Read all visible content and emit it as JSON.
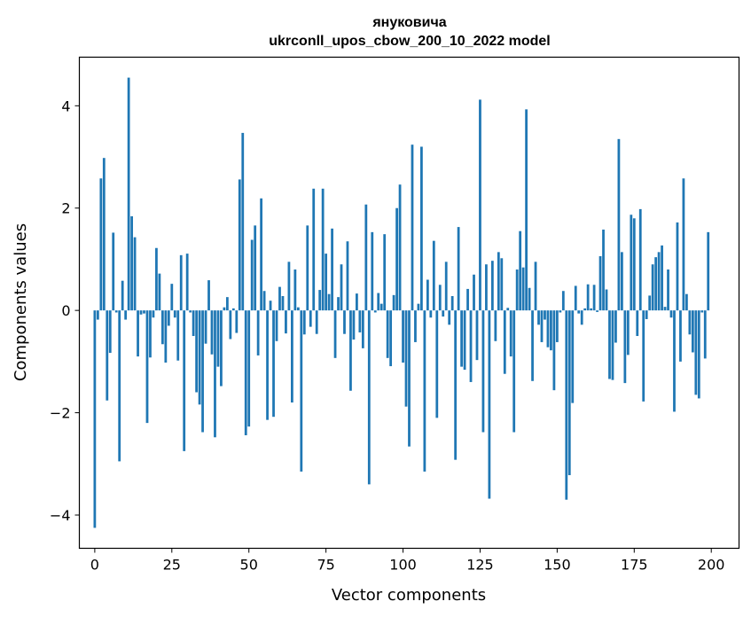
{
  "chart_data": {
    "type": "bar",
    "title": "януковича",
    "subtitle": "ukrconll_upos_cbow_200_10_2022 model",
    "xlabel": "Vector components",
    "ylabel": "Components values",
    "xlim": [
      -5,
      209
    ],
    "ylim": [
      -4.65,
      4.95
    ],
    "xticks": [
      0,
      25,
      50,
      75,
      100,
      125,
      150,
      175,
      200
    ],
    "yticks": [
      -4,
      -2,
      0,
      2,
      4
    ],
    "color": "#1f77b4",
    "values": [
      -4.25,
      -0.18,
      2.58,
      2.98,
      -1.76,
      -0.83,
      1.52,
      -0.04,
      -2.95,
      0.58,
      -0.18,
      4.55,
      1.84,
      1.43,
      -0.9,
      -0.08,
      -0.06,
      -2.2,
      -0.92,
      -0.14,
      1.22,
      0.72,
      -0.66,
      -1.02,
      -0.3,
      0.52,
      -0.14,
      -0.98,
      1.08,
      -2.75,
      1.11,
      -0.04,
      -0.5,
      -1.6,
      -1.84,
      -2.38,
      -0.65,
      0.59,
      -0.86,
      -2.48,
      -1.1,
      -1.48,
      0.06,
      0.26,
      -0.56,
      0.04,
      -0.44,
      2.56,
      3.47,
      -2.44,
      -2.27,
      1.38,
      1.66,
      -0.88,
      2.19,
      0.38,
      -2.14,
      0.19,
      -2.08,
      -0.6,
      0.46,
      0.28,
      -0.45,
      0.95,
      -1.8,
      0.8,
      0.06,
      -3.15,
      -0.47,
      1.66,
      -0.32,
      2.38,
      -0.46,
      0.4,
      2.38,
      1.11,
      0.32,
      1.6,
      -0.93,
      0.26,
      0.9,
      -0.46,
      1.35,
      -1.57,
      -0.57,
      0.33,
      -0.43,
      -0.74,
      2.07,
      -3.4,
      1.53,
      -0.04,
      0.34,
      0.13,
      1.49,
      -0.93,
      -1.09,
      0.3,
      2.0,
      2.46,
      -1.02,
      -1.88,
      -2.66,
      3.24,
      -0.62,
      0.13,
      3.2,
      -3.15,
      0.6,
      -0.14,
      1.36,
      -2.1,
      0.5,
      -0.12,
      0.95,
      -0.28,
      0.28,
      -2.92,
      1.63,
      -1.1,
      -1.16,
      0.42,
      -1.4,
      0.7,
      -0.97,
      4.12,
      -2.38,
      0.9,
      -3.68,
      0.97,
      -0.6,
      1.14,
      1.02,
      -1.24,
      0.05,
      -0.9,
      -2.38,
      0.8,
      1.55,
      0.84,
      3.93,
      0.44,
      -1.38,
      0.95,
      -0.28,
      -0.62,
      -0.18,
      -0.72,
      -0.78,
      -1.56,
      -0.62,
      -0.04,
      0.38,
      -3.7,
      -3.22,
      -1.81,
      0.48,
      -0.06,
      -0.28,
      0.04,
      0.51,
      0.04,
      0.5,
      -0.03,
      1.06,
      1.58,
      0.41,
      -1.34,
      -1.36,
      -0.63,
      3.35,
      1.14,
      -1.42,
      -0.87,
      1.87,
      1.8,
      -0.5,
      1.98,
      -1.78,
      -0.17,
      0.29,
      0.9,
      1.04,
      1.14,
      1.27,
      0.07,
      0.8,
      -0.14,
      -1.98,
      1.72,
      -1.0,
      2.58,
      0.32,
      -0.47,
      -0.82,
      -1.65,
      -1.72,
      -0.04,
      -0.94,
      1.53
    ]
  }
}
